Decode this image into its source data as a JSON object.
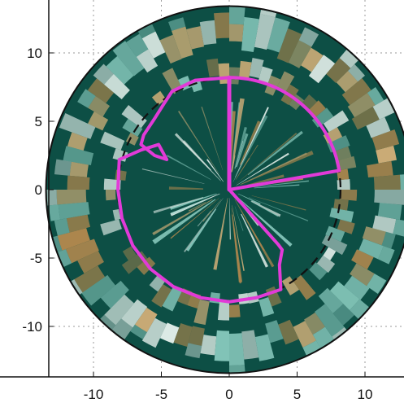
{
  "chart_data": {
    "type": "polar-field",
    "xlim": [
      -14.5,
      12.9
    ],
    "ylim": [
      -13.6,
      14.0
    ],
    "x_ticks": [
      -10,
      -5,
      0,
      5,
      10
    ],
    "y_ticks": [
      10,
      5,
      0,
      -5,
      -10
    ],
    "x_tick_labels": [
      "-10",
      "-5",
      "0",
      "5",
      "10"
    ],
    "y_tick_labels": [
      "10",
      "5",
      "0",
      "-5",
      "-10"
    ],
    "grid": true,
    "outer_radius": 13.5,
    "reference_circle_radius": 8.2,
    "background_color": "#0d4f45",
    "band_colors": [
      "#b88a4e",
      "#d8b27a",
      "#8fd0c4",
      "#e9f3ee"
    ],
    "boundary_color": "#e23ad8",
    "boundary_segments": [
      {
        "from": [
          0,
          0
        ],
        "to": [
          0,
          8.2
        ]
      },
      {
        "from": [
          0,
          0
        ],
        "to": [
          8.1,
          1.4
        ]
      },
      {
        "from": [
          0,
          0
        ],
        "to": [
          3.6,
          -4.0
        ]
      }
    ],
    "boundary_path": [
      [
        0,
        8.2
      ],
      [
        -2.5,
        8.0
      ],
      [
        -4.2,
        7.2
      ],
      [
        -4.8,
        6.3
      ],
      [
        -5.5,
        5.2
      ],
      [
        -6.3,
        4.0
      ],
      [
        -6.5,
        3.3
      ],
      [
        -5.5,
        2.5
      ],
      [
        -4.6,
        2.2
      ],
      [
        -5.2,
        3.3
      ],
      [
        -6.5,
        2.9
      ],
      [
        -8.1,
        2.2
      ],
      [
        -8.2,
        0
      ],
      [
        -7.9,
        -2.1
      ],
      [
        -7.1,
        -4.1
      ],
      [
        -5.8,
        -5.8
      ],
      [
        -4.1,
        -7.1
      ],
      [
        -2.1,
        -7.9
      ],
      [
        0,
        -8.2
      ],
      [
        2.0,
        -7.9
      ],
      [
        3.8,
        -7.3
      ],
      [
        3.7,
        -5.5
      ],
      [
        3.9,
        -4.4
      ],
      [
        3.6,
        -4.0
      ]
    ],
    "boundary_arc_ne": {
      "from": [
        0,
        8.2
      ],
      "to": [
        8.1,
        1.4
      ]
    }
  }
}
